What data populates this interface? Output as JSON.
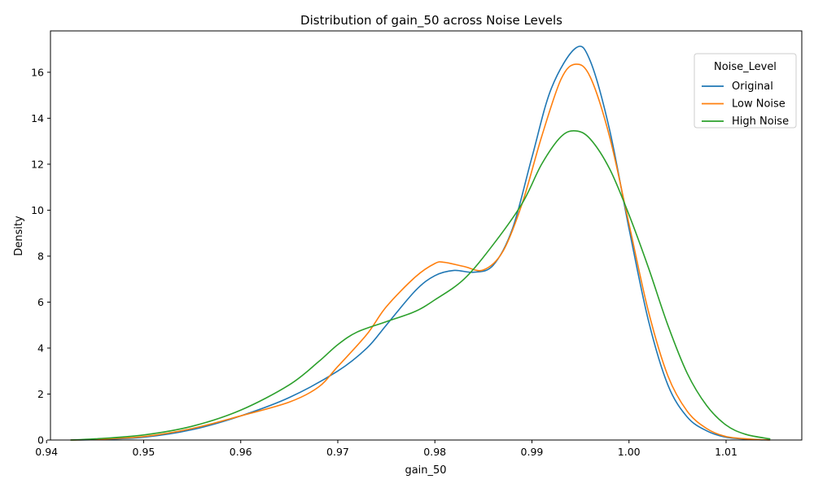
{
  "chart_data": {
    "type": "line",
    "title": "Distribution of gain_50 across Noise Levels",
    "xlabel": "gain_50",
    "ylabel": "Density",
    "xlim": [
      0.9404,
      1.0178
    ],
    "ylim": [
      0,
      17.8
    ],
    "xticks": [
      0.94,
      0.95,
      0.96,
      0.97,
      0.98,
      0.99,
      1.0,
      1.01
    ],
    "xtick_labels": [
      "0.94",
      "0.95",
      "0.96",
      "0.97",
      "0.98",
      "0.99",
      "1.00",
      "1.01"
    ],
    "yticks": [
      0,
      2,
      4,
      6,
      8,
      10,
      12,
      14,
      16
    ],
    "ytick_labels": [
      "0",
      "2",
      "4",
      "6",
      "8",
      "10",
      "12",
      "14",
      "16"
    ],
    "grid": false,
    "legend": {
      "title": "Noise_Level",
      "placement": "top-right"
    },
    "series": [
      {
        "name": "Original",
        "color": "#1f77b4",
        "points": [
          [
            0.9425,
            0.0
          ],
          [
            0.945,
            0.02
          ],
          [
            0.95,
            0.12
          ],
          [
            0.955,
            0.45
          ],
          [
            0.96,
            1.05
          ],
          [
            0.965,
            1.85
          ],
          [
            0.97,
            3.0
          ],
          [
            0.973,
            4.0
          ],
          [
            0.975,
            5.0
          ],
          [
            0.978,
            6.5
          ],
          [
            0.98,
            7.15
          ],
          [
            0.982,
            7.38
          ],
          [
            0.984,
            7.3
          ],
          [
            0.986,
            7.6
          ],
          [
            0.988,
            9.2
          ],
          [
            0.99,
            12.3
          ],
          [
            0.992,
            15.3
          ],
          [
            0.9945,
            17.05
          ],
          [
            0.996,
            16.5
          ],
          [
            0.998,
            13.5
          ],
          [
            1.0,
            9.2
          ],
          [
            1.002,
            5.2
          ],
          [
            1.004,
            2.4
          ],
          [
            1.006,
            1.0
          ],
          [
            1.008,
            0.4
          ],
          [
            1.01,
            0.12
          ],
          [
            1.0125,
            0.03
          ],
          [
            1.0145,
            0.0
          ]
        ]
      },
      {
        "name": "Low Noise",
        "color": "#ff7f0e",
        "points": [
          [
            0.9425,
            0.0
          ],
          [
            0.945,
            0.03
          ],
          [
            0.95,
            0.15
          ],
          [
            0.955,
            0.5
          ],
          [
            0.96,
            1.05
          ],
          [
            0.965,
            1.65
          ],
          [
            0.968,
            2.3
          ],
          [
            0.97,
            3.2
          ],
          [
            0.973,
            4.6
          ],
          [
            0.975,
            5.8
          ],
          [
            0.978,
            7.1
          ],
          [
            0.98,
            7.68
          ],
          [
            0.981,
            7.73
          ],
          [
            0.983,
            7.55
          ],
          [
            0.985,
            7.4
          ],
          [
            0.987,
            8.2
          ],
          [
            0.989,
            10.3
          ],
          [
            0.991,
            13.2
          ],
          [
            0.993,
            15.7
          ],
          [
            0.9945,
            16.35
          ],
          [
            0.996,
            15.8
          ],
          [
            0.998,
            13.2
          ],
          [
            1.0,
            9.4
          ],
          [
            1.002,
            5.6
          ],
          [
            1.004,
            2.8
          ],
          [
            1.006,
            1.25
          ],
          [
            1.008,
            0.5
          ],
          [
            1.01,
            0.15
          ],
          [
            1.0125,
            0.04
          ],
          [
            1.0145,
            0.0
          ]
        ]
      },
      {
        "name": "High Noise",
        "color": "#2ca02c",
        "points": [
          [
            0.9425,
            0.0
          ],
          [
            0.945,
            0.05
          ],
          [
            0.95,
            0.22
          ],
          [
            0.955,
            0.6
          ],
          [
            0.96,
            1.3
          ],
          [
            0.965,
            2.4
          ],
          [
            0.968,
            3.4
          ],
          [
            0.97,
            4.15
          ],
          [
            0.972,
            4.7
          ],
          [
            0.975,
            5.15
          ],
          [
            0.978,
            5.6
          ],
          [
            0.98,
            6.1
          ],
          [
            0.983,
            7.0
          ],
          [
            0.986,
            8.5
          ],
          [
            0.989,
            10.3
          ],
          [
            0.991,
            12.0
          ],
          [
            0.993,
            13.2
          ],
          [
            0.9945,
            13.45
          ],
          [
            0.996,
            13.1
          ],
          [
            0.998,
            11.8
          ],
          [
            1.0,
            9.8
          ],
          [
            1.002,
            7.5
          ],
          [
            1.004,
            5.0
          ],
          [
            1.006,
            2.9
          ],
          [
            1.008,
            1.5
          ],
          [
            1.01,
            0.65
          ],
          [
            1.012,
            0.25
          ],
          [
            1.0145,
            0.05
          ]
        ]
      }
    ]
  }
}
